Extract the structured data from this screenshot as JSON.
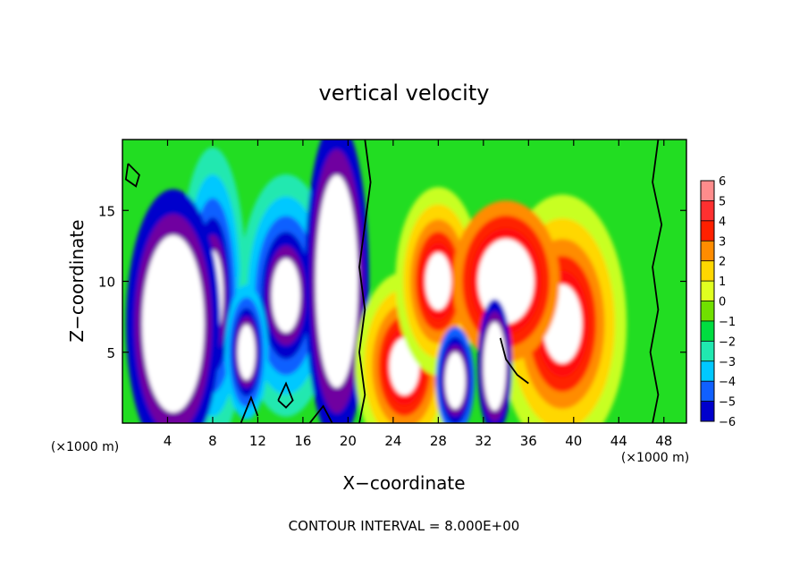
{
  "chart_data": {
    "type": "heatmap",
    "title": "vertical velocity",
    "xlabel": "X−coordinate",
    "ylabel": "Z−coordinate",
    "x_unit_left": "(×1000 m)",
    "x_unit_right": "(×1000 m)",
    "footer": "CONTOUR INTERVAL = 8.000E+00",
    "xlim": [
      0,
      50
    ],
    "ylim": [
      0,
      20
    ],
    "x_ticks": [
      4,
      8,
      12,
      16,
      20,
      24,
      28,
      32,
      36,
      40,
      44,
      48
    ],
    "x_tick_labels": [
      "4",
      "8",
      "12",
      "16",
      "20",
      "24",
      "28",
      "32",
      "36",
      "40",
      "44",
      "48"
    ],
    "y_ticks": [
      5,
      10,
      15
    ],
    "y_tick_labels": [
      "5",
      "10",
      "15"
    ],
    "colorbar": {
      "levels": [
        6,
        5,
        4,
        3,
        2,
        1,
        0,
        -1,
        -2,
        -3,
        -4,
        -5,
        -6
      ],
      "labels": [
        "6",
        "5",
        "4",
        "3",
        "2",
        "1",
        "0",
        "−1",
        "−2",
        "−3",
        "−4",
        "−5",
        "−6"
      ],
      "colors": [
        "#ff8c8c",
        "#ff3030",
        "#ff2000",
        "#ff8c00",
        "#ffd700",
        "#e0ff20",
        "#70e000",
        "#00dd40",
        "#20e8b0",
        "#00c8ff",
        "#1060ff",
        "#0000cc",
        "#7000a0"
      ]
    },
    "background_color": "#22dd22",
    "features": [
      {
        "sign": "negative",
        "x": 8,
        "y": 9,
        "sx": 1.6,
        "sy": 5.5,
        "amp": 1.0
      },
      {
        "sign": "negative",
        "x": 14.5,
        "y": 9,
        "sx": 2.2,
        "sy": 4.5,
        "amp": 1.0
      },
      {
        "sign": "negative",
        "x": 11,
        "y": 5,
        "sx": 1.0,
        "sy": 2.5,
        "amp": 0.8
      },
      {
        "sign": "negative",
        "x": 4.5,
        "y": 7,
        "sx": 2.2,
        "sy": 5,
        "amp": 0.55
      },
      {
        "sign": "negative",
        "x": 19,
        "y": 10,
        "sx": 1.5,
        "sy": 6,
        "amp": 0.45
      },
      {
        "sign": "positive",
        "x": 25,
        "y": 4,
        "sx": 2.3,
        "sy": 3.5,
        "amp": 1.0
      },
      {
        "sign": "positive",
        "x": 28,
        "y": 10,
        "sx": 2.0,
        "sy": 3.5,
        "amp": 0.95
      },
      {
        "sign": "positive",
        "x": 39,
        "y": 7,
        "sx": 3.0,
        "sy": 4.8,
        "amp": 1.0
      },
      {
        "sign": "positive",
        "x": 34,
        "y": 10,
        "sx": 2.5,
        "sy": 3,
        "amp": 0.6
      },
      {
        "sign": "negative",
        "x": 29.5,
        "y": 3,
        "sx": 0.9,
        "sy": 2,
        "amp": 0.65
      },
      {
        "sign": "negative",
        "x": 33,
        "y": 4,
        "sx": 0.8,
        "sy": 2.5,
        "amp": 0.5
      }
    ]
  }
}
